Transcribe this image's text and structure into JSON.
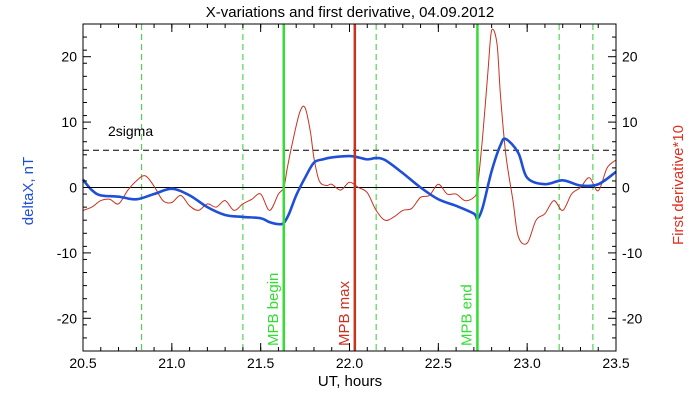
{
  "chart_data": {
    "type": "line",
    "title": "X-variations and first derivative, 04.09.2012",
    "xlabel": "UT, hours",
    "ylabel_left": "deltaX, nT",
    "ylabel_right": "First derivative*10",
    "xlim": [
      20.5,
      23.5
    ],
    "ylim": [
      -25,
      25
    ],
    "x_ticks": [
      "20.5",
      "21.0",
      "21.5",
      "22.0",
      "22.5",
      "23.0",
      "23.5"
    ],
    "y_ticks": [
      "-20",
      "-10",
      "0",
      "10",
      "20"
    ],
    "sigma_label": "2sigma",
    "sigma_level": 5.7,
    "zero_level": 0,
    "colors": {
      "deltaX": "#1f4fd6",
      "derivative": "#c8321e",
      "marker_green": "#33dd33",
      "marker_red": "#c8321e",
      "dashed_green": "#33cc33",
      "right_axis_label": "#e03020",
      "left_axis_label": "#1f4fd6",
      "green_text": "#33dd33",
      "red_text": "#d03020"
    },
    "markers": [
      {
        "label": "MPB begin",
        "x": 21.63,
        "color": "green"
      },
      {
        "label": "MPB max",
        "x": 22.03,
        "color": "red"
      },
      {
        "label": "MPB end",
        "x": 22.72,
        "color": "green"
      }
    ],
    "dashed_lines": [
      20.83,
      21.4,
      22.15,
      23.18,
      23.37
    ],
    "series": [
      {
        "name": "deltaX",
        "x": [
          20.5,
          20.55,
          20.6,
          20.7,
          20.8,
          20.9,
          21.0,
          21.1,
          21.2,
          21.3,
          21.4,
          21.5,
          21.55,
          21.6,
          21.63,
          21.66,
          21.7,
          21.75,
          21.8,
          21.85,
          21.9,
          22.0,
          22.05,
          22.1,
          22.15,
          22.2,
          22.3,
          22.4,
          22.5,
          22.6,
          22.7,
          22.72,
          22.75,
          22.8,
          22.85,
          22.88,
          22.95,
          23.0,
          23.1,
          23.2,
          23.3,
          23.4,
          23.5
        ],
        "y": [
          1.2,
          -0.4,
          -1.2,
          -1.4,
          -1.8,
          -1.0,
          -0.2,
          -1.2,
          -3.0,
          -4.2,
          -4.5,
          -4.7,
          -5.3,
          -5.6,
          -5.4,
          -4.0,
          -1.2,
          1.5,
          3.8,
          4.3,
          4.6,
          4.8,
          4.6,
          4.3,
          4.5,
          4.2,
          2.2,
          0.0,
          -1.8,
          -2.8,
          -4.0,
          -4.8,
          -3.0,
          2.5,
          6.5,
          7.4,
          5.3,
          1.5,
          0.5,
          1.1,
          0.3,
          0.5,
          2.4
        ]
      },
      {
        "name": "derivative",
        "x": [
          20.5,
          20.55,
          20.6,
          20.65,
          20.7,
          20.75,
          20.8,
          20.85,
          20.9,
          20.95,
          21.0,
          21.05,
          21.1,
          21.15,
          21.2,
          21.25,
          21.3,
          21.35,
          21.4,
          21.45,
          21.5,
          21.55,
          21.6,
          21.63,
          21.65,
          21.68,
          21.72,
          21.75,
          21.78,
          21.8,
          21.83,
          21.87,
          21.9,
          21.95,
          22.0,
          22.05,
          22.1,
          22.15,
          22.2,
          22.25,
          22.3,
          22.35,
          22.4,
          22.45,
          22.5,
          22.55,
          22.6,
          22.65,
          22.7,
          22.72,
          22.75,
          22.78,
          22.8,
          22.83,
          22.85,
          22.88,
          22.92,
          22.95,
          23.0,
          23.05,
          23.1,
          23.15,
          23.2,
          23.25,
          23.3,
          23.35,
          23.4,
          23.45,
          23.5
        ],
        "y": [
          -3.5,
          -3.0,
          -2.0,
          -1.8,
          -2.5,
          -0.5,
          1.0,
          1.8,
          0.2,
          -2.0,
          -2.3,
          -1.2,
          -2.8,
          -3.5,
          -2.5,
          -3.0,
          -2.0,
          -3.5,
          -2.5,
          -1.8,
          -1.0,
          -3.5,
          -1.0,
          0.0,
          3.0,
          7.0,
          11.5,
          12.2,
          8.5,
          4.5,
          1.0,
          0.3,
          0.5,
          -0.4,
          0.8,
          0.0,
          -0.8,
          -3.5,
          -5.0,
          -4.5,
          -3.5,
          -3.2,
          -1.5,
          -1.2,
          0.5,
          -1.0,
          -1.0,
          -2.0,
          -1.5,
          0.0,
          8.0,
          18.0,
          24.0,
          22.0,
          14.0,
          5.0,
          -2.0,
          -7.5,
          -8.5,
          -5.0,
          -4.0,
          -2.0,
          -3.5,
          -1.0,
          0.0,
          1.5,
          -0.5,
          3.0,
          4.2
        ]
      }
    ]
  }
}
